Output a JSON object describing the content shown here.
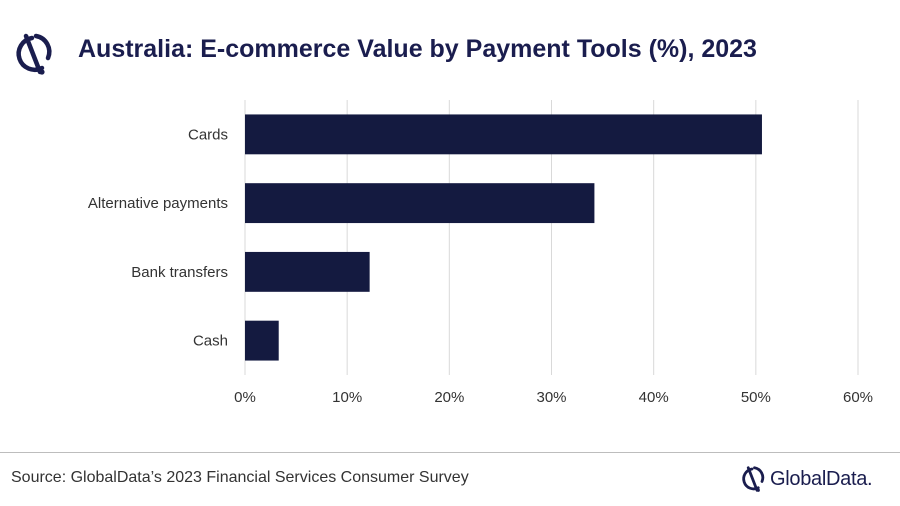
{
  "header": {
    "title": "Australia: E-commerce Value by Payment Tools (%), 2023",
    "logo_icon": "globaldata-logo-icon"
  },
  "footer": {
    "source": "Source: GlobalData’s 2023 Financial Services Consumer Survey",
    "brand": "GlobalData."
  },
  "colors": {
    "bar": "#141a40",
    "title": "#1a1d4e",
    "grid": "#d9d9d9",
    "text": "#333333"
  },
  "chart_data": {
    "type": "bar",
    "orientation": "horizontal",
    "title": "Australia: E-commerce Value by Payment Tools (%), 2023",
    "categories": [
      "Cards",
      "Alternative payments",
      "Bank transfers",
      "Cash"
    ],
    "values": [
      50.6,
      34.2,
      12.2,
      3.3
    ],
    "xlim": [
      0,
      60
    ],
    "x_ticks": [
      0,
      10,
      20,
      30,
      40,
      50,
      60
    ],
    "x_tick_labels": [
      "0%",
      "10%",
      "20%",
      "30%",
      "40%",
      "50%",
      "60%"
    ],
    "xlabel": "",
    "ylabel": "",
    "grid": "vertical",
    "legend": "none"
  }
}
